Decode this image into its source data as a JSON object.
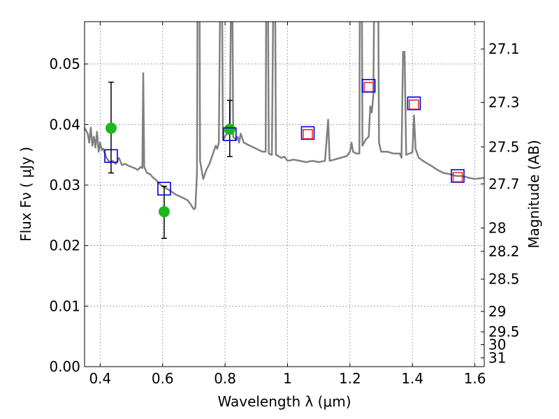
{
  "chart_data": {
    "type": "line",
    "xlabel": "Wavelength  λ (μm)",
    "ylabel": "Flux  Fν  ( μJy )",
    "ylabel_right": "Magnitude (AB)",
    "xlim": [
      0.35,
      1.63
    ],
    "ylim": [
      0.0,
      0.057
    ],
    "grid": true,
    "x_ticks": [
      {
        "value": 0.4,
        "label": "0.4"
      },
      {
        "value": 0.6,
        "label": "0.6"
      },
      {
        "value": 0.8,
        "label": "0.8"
      },
      {
        "value": 1.0,
        "label": "1"
      },
      {
        "value": 1.2,
        "label": "1.2"
      },
      {
        "value": 1.4,
        "label": "1.4"
      },
      {
        "value": 1.6,
        "label": "1.6"
      }
    ],
    "y_ticks": [
      {
        "value": 0.0,
        "label": "0.00"
      },
      {
        "value": 0.01,
        "label": "0.01"
      },
      {
        "value": 0.02,
        "label": "0.02"
      },
      {
        "value": 0.03,
        "label": "0.03"
      },
      {
        "value": 0.04,
        "label": "0.04"
      },
      {
        "value": 0.05,
        "label": "0.05"
      }
    ],
    "right_ticks": [
      {
        "mag": 27.1,
        "label": "27.1"
      },
      {
        "mag": 27.3,
        "label": "27.3"
      },
      {
        "mag": 27.5,
        "label": "27.5"
      },
      {
        "mag": 27.7,
        "label": "27.7"
      },
      {
        "mag": 28.0,
        "label": "28"
      },
      {
        "mag": 28.2,
        "label": "28.2"
      },
      {
        "mag": 28.5,
        "label": "28.5"
      },
      {
        "mag": 29.0,
        "label": "29"
      },
      {
        "mag": 29.5,
        "label": "29.5"
      },
      {
        "mag": 30.0,
        "label": "30"
      },
      {
        "mag": 31.0,
        "label": "31"
      }
    ],
    "series": [
      {
        "kind": "line",
        "color": "#808080",
        "points": [
          [
            0.35,
            0.0395
          ],
          [
            0.36,
            0.0385
          ],
          [
            0.365,
            0.037
          ],
          [
            0.37,
            0.0395
          ],
          [
            0.375,
            0.0365
          ],
          [
            0.38,
            0.038
          ],
          [
            0.385,
            0.0362
          ],
          [
            0.39,
            0.0388
          ],
          [
            0.395,
            0.0355
          ],
          [
            0.4,
            0.037
          ],
          [
            0.405,
            0.0358
          ],
          [
            0.41,
            0.036
          ],
          [
            0.42,
            0.0345
          ],
          [
            0.43,
            0.0338
          ],
          [
            0.44,
            0.034
          ],
          [
            0.45,
            0.0335
          ],
          [
            0.46,
            0.0345
          ],
          [
            0.47,
            0.0333
          ],
          [
            0.48,
            0.0335
          ],
          [
            0.49,
            0.0332
          ],
          [
            0.5,
            0.033
          ],
          [
            0.51,
            0.0328
          ],
          [
            0.52,
            0.0325
          ],
          [
            0.53,
            0.033
          ],
          [
            0.535,
            0.0328
          ],
          [
            0.538,
            0.0485
          ],
          [
            0.541,
            0.033
          ],
          [
            0.55,
            0.032
          ],
          [
            0.56,
            0.0318
          ],
          [
            0.57,
            0.0312
          ],
          [
            0.58,
            0.0308
          ],
          [
            0.59,
            0.0302
          ],
          [
            0.6,
            0.0298
          ],
          [
            0.62,
            0.0292
          ],
          [
            0.64,
            0.0285
          ],
          [
            0.66,
            0.028
          ],
          [
            0.68,
            0.0275
          ],
          [
            0.69,
            0.0268
          ],
          [
            0.7,
            0.026
          ],
          [
            0.705,
            0.0262
          ],
          [
            0.71,
            0.032
          ],
          [
            0.712,
            0.065
          ],
          [
            0.718,
            0.065
          ],
          [
            0.72,
            0.034
          ],
          [
            0.73,
            0.031
          ],
          [
            0.74,
            0.0325
          ],
          [
            0.75,
            0.0335
          ],
          [
            0.76,
            0.035
          ],
          [
            0.77,
            0.0365
          ],
          [
            0.775,
            0.036
          ],
          [
            0.78,
            0.037
          ],
          [
            0.785,
            0.065
          ],
          [
            0.79,
            0.065
          ],
          [
            0.793,
            0.0375
          ],
          [
            0.8,
            0.038
          ],
          [
            0.81,
            0.039
          ],
          [
            0.815,
            0.0385
          ],
          [
            0.82,
            0.065
          ],
          [
            0.823,
            0.065
          ],
          [
            0.826,
            0.038
          ],
          [
            0.835,
            0.0375
          ],
          [
            0.84,
            0.038
          ],
          [
            0.845,
            0.037
          ],
          [
            0.85,
            0.0385
          ],
          [
            0.86,
            0.037
          ],
          [
            0.88,
            0.0365
          ],
          [
            0.9,
            0.036
          ],
          [
            0.92,
            0.0355
          ],
          [
            0.93,
            0.0355
          ],
          [
            0.932,
            0.065
          ],
          [
            0.937,
            0.065
          ],
          [
            0.94,
            0.0352
          ],
          [
            0.95,
            0.035
          ],
          [
            0.955,
            0.065
          ],
          [
            0.96,
            0.065
          ],
          [
            0.963,
            0.035
          ],
          [
            0.97,
            0.0348
          ],
          [
            0.98,
            0.0345
          ],
          [
            0.99,
            0.0347
          ],
          [
            1.0,
            0.034
          ],
          [
            1.02,
            0.0342
          ],
          [
            1.04,
            0.034
          ],
          [
            1.06,
            0.0338
          ],
          [
            1.08,
            0.034
          ],
          [
            1.1,
            0.0338
          ],
          [
            1.12,
            0.034
          ],
          [
            1.13,
            0.0408
          ],
          [
            1.135,
            0.034
          ],
          [
            1.15,
            0.0342
          ],
          [
            1.17,
            0.0345
          ],
          [
            1.19,
            0.0348
          ],
          [
            1.2,
            0.0355
          ],
          [
            1.205,
            0.037
          ],
          [
            1.21,
            0.0355
          ],
          [
            1.22,
            0.0352
          ],
          [
            1.23,
            0.0352
          ],
          [
            1.232,
            0.065
          ],
          [
            1.238,
            0.065
          ],
          [
            1.24,
            0.0365
          ],
          [
            1.25,
            0.0375
          ],
          [
            1.26,
            0.038
          ],
          [
            1.265,
            0.043
          ],
          [
            1.27,
            0.042
          ],
          [
            1.275,
            0.045
          ],
          [
            1.278,
            0.065
          ],
          [
            1.29,
            0.065
          ],
          [
            1.293,
            0.037
          ],
          [
            1.3,
            0.0355
          ],
          [
            1.32,
            0.0355
          ],
          [
            1.34,
            0.0352
          ],
          [
            1.36,
            0.0352
          ],
          [
            1.365,
            0.0345
          ],
          [
            1.37,
            0.052
          ],
          [
            1.375,
            0.052
          ],
          [
            1.38,
            0.035
          ],
          [
            1.39,
            0.0352
          ],
          [
            1.4,
            0.0354
          ],
          [
            1.405,
            0.0415
          ],
          [
            1.41,
            0.036
          ],
          [
            1.42,
            0.0345
          ],
          [
            1.44,
            0.0338
          ],
          [
            1.46,
            0.0332
          ],
          [
            1.48,
            0.0325
          ],
          [
            1.5,
            0.032
          ],
          [
            1.52,
            0.0318
          ],
          [
            1.54,
            0.0315
          ],
          [
            1.56,
            0.0315
          ],
          [
            1.58,
            0.0312
          ],
          [
            1.6,
            0.031
          ],
          [
            1.63,
            0.0312
          ]
        ]
      },
      {
        "kind": "errorbar",
        "color": "#000000",
        "points": [
          {
            "x": 0.435,
            "lo": 0.032,
            "hi": 0.047
          },
          {
            "x": 0.605,
            "lo": 0.0212,
            "hi": 0.0298
          },
          {
            "x": 0.815,
            "lo": 0.0347,
            "hi": 0.044
          }
        ]
      },
      {
        "kind": "scatter",
        "marker": "circle",
        "color": "#1cb81c",
        "points": [
          [
            0.435,
            0.0394
          ],
          [
            0.605,
            0.0256
          ],
          [
            0.815,
            0.0392
          ]
        ]
      },
      {
        "kind": "scatter",
        "marker": "square",
        "color": "#0000dd",
        "points": [
          [
            0.435,
            0.0348
          ],
          [
            0.605,
            0.0294
          ],
          [
            0.815,
            0.0384
          ],
          [
            1.065,
            0.0386
          ],
          [
            1.26,
            0.0464
          ],
          [
            1.405,
            0.0435
          ],
          [
            1.545,
            0.0315
          ]
        ]
      },
      {
        "kind": "scatter",
        "marker": "square",
        "color": "#ee1111",
        "points": [
          [
            1.065,
            0.0384
          ],
          [
            1.26,
            0.0462
          ],
          [
            1.405,
            0.0433
          ],
          [
            1.545,
            0.0313
          ]
        ]
      }
    ]
  }
}
